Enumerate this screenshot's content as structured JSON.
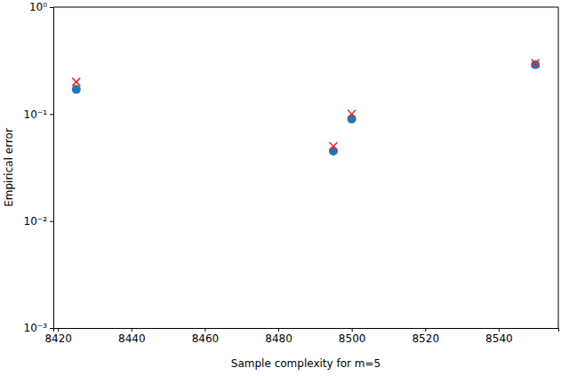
{
  "chart_data": {
    "type": "scatter",
    "x_label": "Sample complexity for m=5",
    "y_label": "Empirical error",
    "x": [
      8425,
      8495,
      8500,
      8550
    ],
    "series": [
      {
        "color": "#1f77b4",
        "marker": "circle",
        "values": [
          0.17,
          0.045,
          0.09,
          0.29
        ]
      },
      {
        "color": "#e8242b",
        "marker": "x",
        "values": [
          0.2,
          0.05,
          0.1,
          0.3
        ]
      }
    ],
    "xlim": [
      8418.75,
      8556.25
    ],
    "xticks": [
      8420,
      8440,
      8460,
      8480,
      8500,
      8520,
      8540
    ],
    "ylim": [
      0.001,
      1
    ],
    "yticks": [
      {
        "value": 0.001,
        "label": "10⁻³"
      },
      {
        "value": 0.01,
        "label": "10⁻²"
      },
      {
        "value": 0.1,
        "label": "10⁻¹"
      },
      {
        "value": 1,
        "label": "10⁰"
      }
    ],
    "log": "y"
  }
}
